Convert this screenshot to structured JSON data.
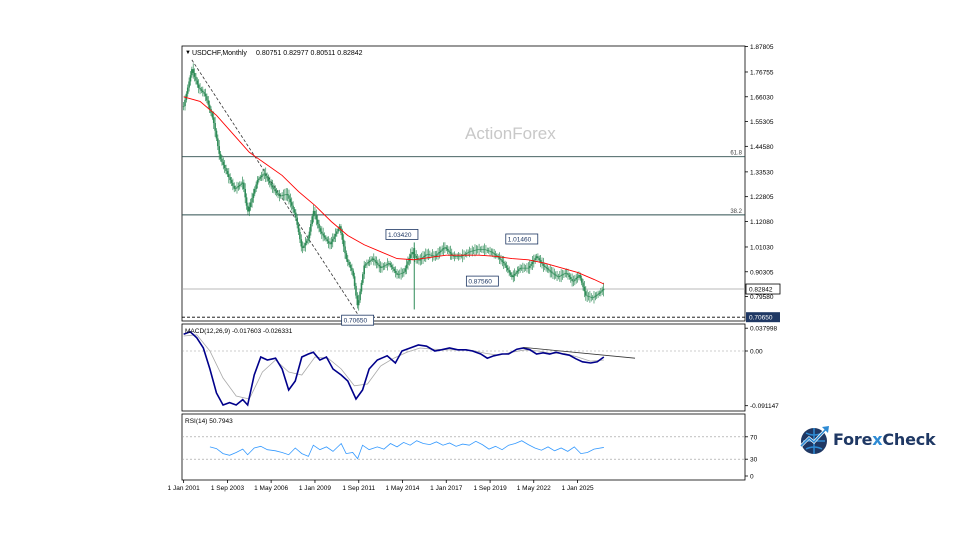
{
  "header": {
    "symbol": "USDCHF,Monthly",
    "ohlc": "0.80751 0.82977 0.80511 0.82842"
  },
  "watermark": "ActionForex",
  "brand": {
    "name_part1": "Fore",
    "name_x": "x",
    "name_part2": "Check"
  },
  "colors": {
    "candle": "#2e8b57",
    "ma": "#ff0000",
    "macd": "#00008b",
    "signal": "#a9a9a9",
    "rsi": "#3399ff",
    "levels": "#2f4f4f"
  },
  "chart_data": [
    {
      "type": "candlestick",
      "name": "main",
      "price_axis_ticks": [
        "1.87805",
        "1.76755",
        "1.66030",
        "1.55305",
        "1.44580",
        "1.33530",
        "1.22805",
        "1.12080",
        "1.01030",
        "0.90305",
        "0.79580"
      ],
      "ylim": [
        0.69,
        1.88
      ],
      "time_ticks": [
        "1 Jan 2001",
        "1 Sep 2003",
        "1 May 2006",
        "1 Jan 2009",
        "1 Sep 2011",
        "1 May 2014",
        "1 Jan 2017",
        "1 Sep 2019",
        "1 May 2022",
        "1 Jan 2025"
      ],
      "time_tick_years": [
        2001.0,
        2003.67,
        2006.33,
        2009.0,
        2011.67,
        2014.33,
        2017.0,
        2019.67,
        2022.33,
        2025.0
      ],
      "xlim": [
        2000.9,
        2035.2
      ],
      "current_price": "0.82842",
      "current_price_value": 0.82842,
      "low_label": "0.70650",
      "low_value": 0.7065,
      "fib_levels": [
        {
          "label": "61.8",
          "value": 1.4009
        },
        {
          "label": "38.2",
          "value": 1.1492
        }
      ],
      "annotations": [
        {
          "text": "0.70650",
          "year": 2011.6,
          "value": 0.7065
        },
        {
          "text": "1.03420",
          "year": 2014.3,
          "value": 1.0342
        },
        {
          "text": "0.87560",
          "year": 2019.2,
          "value": 0.8756
        },
        {
          "text": "1.01460",
          "year": 2021.6,
          "value": 1.0146
        }
      ],
      "spike_2015": {
        "year": 2015.05,
        "low": 0.74,
        "high": 1.03
      },
      "price_path": [
        [
          2001.0,
          1.62
        ],
        [
          2001.5,
          1.78
        ],
        [
          2001.9,
          1.7
        ],
        [
          2002.3,
          1.67
        ],
        [
          2002.8,
          1.56
        ],
        [
          2003.2,
          1.4
        ],
        [
          2003.7,
          1.32
        ],
        [
          2004.1,
          1.26
        ],
        [
          2004.6,
          1.29
        ],
        [
          2004.9,
          1.16
        ],
        [
          2005.5,
          1.3
        ],
        [
          2005.9,
          1.33
        ],
        [
          2006.3,
          1.28
        ],
        [
          2006.8,
          1.23
        ],
        [
          2007.3,
          1.24
        ],
        [
          2007.8,
          1.15
        ],
        [
          2008.2,
          1.0
        ],
        [
          2008.6,
          1.05
        ],
        [
          2008.9,
          1.17
        ],
        [
          2009.3,
          1.08
        ],
        [
          2009.9,
          1.02
        ],
        [
          2010.5,
          1.1
        ],
        [
          2010.9,
          0.96
        ],
        [
          2011.3,
          0.9
        ],
        [
          2011.6,
          0.75
        ],
        [
          2012.0,
          0.93
        ],
        [
          2012.5,
          0.96
        ],
        [
          2013.0,
          0.92
        ],
        [
          2013.5,
          0.94
        ],
        [
          2014.0,
          0.89
        ],
        [
          2014.4,
          0.9
        ],
        [
          2014.9,
          0.99
        ],
        [
          2015.3,
          0.95
        ],
        [
          2015.8,
          0.98
        ],
        [
          2016.3,
          0.97
        ],
        [
          2016.9,
          1.01
        ],
        [
          2017.4,
          0.97
        ],
        [
          2017.9,
          0.97
        ],
        [
          2018.4,
          0.99
        ],
        [
          2018.9,
          1.0
        ],
        [
          2019.3,
          1.0
        ],
        [
          2019.7,
          0.99
        ],
        [
          2020.1,
          0.97
        ],
        [
          2020.5,
          0.94
        ],
        [
          2021.0,
          0.88
        ],
        [
          2021.5,
          0.92
        ],
        [
          2022.0,
          0.92
        ],
        [
          2022.5,
          0.97
        ],
        [
          2022.9,
          0.93
        ],
        [
          2023.4,
          0.9
        ],
        [
          2023.8,
          0.88
        ],
        [
          2024.3,
          0.9
        ],
        [
          2024.7,
          0.86
        ],
        [
          2025.1,
          0.89
        ],
        [
          2025.5,
          0.8
        ],
        [
          2025.9,
          0.79
        ],
        [
          2026.3,
          0.81
        ],
        [
          2026.6,
          0.83
        ]
      ],
      "ma_path": [
        [
          2001.0,
          1.66
        ],
        [
          2002.0,
          1.64
        ],
        [
          2003.0,
          1.58
        ],
        [
          2004.0,
          1.5
        ],
        [
          2005.0,
          1.42
        ],
        [
          2006.0,
          1.37
        ],
        [
          2007.0,
          1.32
        ],
        [
          2008.0,
          1.25
        ],
        [
          2009.0,
          1.19
        ],
        [
          2010.0,
          1.12
        ],
        [
          2011.0,
          1.06
        ],
        [
          2012.0,
          1.02
        ],
        [
          2013.0,
          0.99
        ],
        [
          2014.0,
          0.96
        ],
        [
          2015.0,
          0.955
        ],
        [
          2016.0,
          0.965
        ],
        [
          2017.0,
          0.975
        ],
        [
          2018.0,
          0.975
        ],
        [
          2019.0,
          0.975
        ],
        [
          2020.0,
          0.97
        ],
        [
          2021.0,
          0.96
        ],
        [
          2022.0,
          0.955
        ],
        [
          2023.0,
          0.94
        ],
        [
          2024.0,
          0.92
        ],
        [
          2025.0,
          0.9
        ],
        [
          2026.0,
          0.87
        ],
        [
          2026.6,
          0.85
        ]
      ],
      "trendline_dashed": [
        [
          2001.5,
          1.82
        ],
        [
          2011.6,
          0.72
        ]
      ]
    },
    {
      "type": "line",
      "name": "macd",
      "label": "MACD(12,26,9) -0.017603 -0.026331",
      "axis_ticks": [
        "0.037998",
        "0.00",
        "-0.091147"
      ],
      "ylim": [
        -0.1,
        0.045
      ],
      "zero_line": 0.0,
      "macd_path": [
        [
          2001.0,
          0.028
        ],
        [
          2001.4,
          0.032
        ],
        [
          2001.8,
          0.022
        ],
        [
          2002.2,
          0.005
        ],
        [
          2002.6,
          -0.03
        ],
        [
          2003.0,
          -0.07
        ],
        [
          2003.4,
          -0.09
        ],
        [
          2003.8,
          -0.086
        ],
        [
          2004.2,
          -0.09
        ],
        [
          2004.6,
          -0.081
        ],
        [
          2004.9,
          -0.09
        ],
        [
          2005.3,
          -0.04
        ],
        [
          2005.7,
          -0.01
        ],
        [
          2006.1,
          -0.015
        ],
        [
          2006.6,
          -0.012
        ],
        [
          2007.0,
          -0.03
        ],
        [
          2007.4,
          -0.065
        ],
        [
          2007.8,
          -0.05
        ],
        [
          2008.2,
          -0.01
        ],
        [
          2008.6,
          -0.005
        ],
        [
          2008.9,
          -0.002
        ],
        [
          2009.3,
          -0.015
        ],
        [
          2009.7,
          -0.01
        ],
        [
          2010.1,
          -0.03
        ],
        [
          2010.6,
          -0.04
        ],
        [
          2011.0,
          -0.05
        ],
        [
          2011.5,
          -0.08
        ],
        [
          2011.9,
          -0.065
        ],
        [
          2012.3,
          -0.03
        ],
        [
          2012.8,
          -0.015
        ],
        [
          2013.4,
          -0.008
        ],
        [
          2013.9,
          -0.02
        ],
        [
          2014.3,
          0.0
        ],
        [
          2014.8,
          0.005
        ],
        [
          2015.3,
          0.01
        ],
        [
          2015.8,
          0.008
        ],
        [
          2016.3,
          0.0
        ],
        [
          2016.7,
          0.002
        ],
        [
          2017.2,
          0.005
        ],
        [
          2017.7,
          0.002
        ],
        [
          2018.2,
          0.002
        ],
        [
          2018.6,
          0.0
        ],
        [
          2019.1,
          -0.005
        ],
        [
          2019.5,
          -0.012
        ],
        [
          2019.9,
          -0.008
        ],
        [
          2020.4,
          -0.005
        ],
        [
          2020.8,
          -0.005
        ],
        [
          2021.3,
          0.003
        ],
        [
          2021.7,
          0.005
        ],
        [
          2022.1,
          0.002
        ],
        [
          2022.5,
          -0.005
        ],
        [
          2022.9,
          -0.003
        ],
        [
          2023.3,
          -0.005
        ],
        [
          2023.7,
          -0.002
        ],
        [
          2024.1,
          -0.005
        ],
        [
          2024.5,
          -0.007
        ],
        [
          2024.9,
          -0.013
        ],
        [
          2025.3,
          -0.018
        ],
        [
          2025.8,
          -0.02
        ],
        [
          2026.2,
          -0.018
        ],
        [
          2026.6,
          -0.01
        ]
      ],
      "signal_path": [
        [
          2001.0,
          0.025
        ],
        [
          2001.8,
          0.027
        ],
        [
          2002.6,
          0.0
        ],
        [
          2003.4,
          -0.045
        ],
        [
          2004.2,
          -0.075
        ],
        [
          2005.0,
          -0.08
        ],
        [
          2005.8,
          -0.035
        ],
        [
          2006.6,
          -0.015
        ],
        [
          2007.4,
          -0.035
        ],
        [
          2008.2,
          -0.04
        ],
        [
          2009.0,
          -0.01
        ],
        [
          2009.8,
          -0.012
        ],
        [
          2010.6,
          -0.03
        ],
        [
          2011.4,
          -0.058
        ],
        [
          2012.2,
          -0.055
        ],
        [
          2013.0,
          -0.025
        ],
        [
          2013.8,
          -0.012
        ],
        [
          2014.6,
          -0.002
        ],
        [
          2015.4,
          0.005
        ],
        [
          2016.2,
          0.003
        ],
        [
          2017.0,
          0.002
        ],
        [
          2017.8,
          0.002
        ],
        [
          2018.6,
          0.001
        ],
        [
          2019.4,
          -0.004
        ],
        [
          2020.2,
          -0.007
        ],
        [
          2021.0,
          -0.002
        ],
        [
          2021.8,
          0.002
        ],
        [
          2022.6,
          0.0
        ],
        [
          2023.4,
          -0.004
        ],
        [
          2024.2,
          -0.004
        ],
        [
          2025.0,
          -0.01
        ],
        [
          2025.8,
          -0.017
        ],
        [
          2026.6,
          -0.015
        ]
      ],
      "trendline": [
        [
          2021.7,
          0.006
        ],
        [
          2028.5,
          -0.012
        ]
      ]
    },
    {
      "type": "line",
      "name": "rsi",
      "label": "RSI(14) 50.7943",
      "axis_ticks": [
        "70",
        "30",
        "0"
      ],
      "ylim": [
        0,
        100
      ],
      "levels": [
        70,
        30
      ],
      "rsi_path": [
        [
          2002.6,
          52
        ],
        [
          2003.0,
          49
        ],
        [
          2003.4,
          40
        ],
        [
          2003.8,
          37
        ],
        [
          2004.2,
          42
        ],
        [
          2004.6,
          48
        ],
        [
          2004.9,
          38
        ],
        [
          2005.3,
          50
        ],
        [
          2005.7,
          53
        ],
        [
          2006.1,
          47
        ],
        [
          2006.6,
          45
        ],
        [
          2007.0,
          42
        ],
        [
          2007.4,
          38
        ],
        [
          2007.8,
          50
        ],
        [
          2008.2,
          40
        ],
        [
          2008.6,
          35
        ],
        [
          2008.9,
          55
        ],
        [
          2009.3,
          47
        ],
        [
          2009.7,
          52
        ],
        [
          2010.1,
          44
        ],
        [
          2010.6,
          58
        ],
        [
          2010.9,
          40
        ],
        [
          2011.3,
          42
        ],
        [
          2011.6,
          31
        ],
        [
          2011.9,
          55
        ],
        [
          2012.3,
          47
        ],
        [
          2012.8,
          52
        ],
        [
          2013.2,
          48
        ],
        [
          2013.6,
          58
        ],
        [
          2014.0,
          52
        ],
        [
          2014.4,
          60
        ],
        [
          2014.8,
          55
        ],
        [
          2015.2,
          63
        ],
        [
          2015.6,
          58
        ],
        [
          2016.0,
          56
        ],
        [
          2016.4,
          61
        ],
        [
          2016.8,
          55
        ],
        [
          2017.2,
          59
        ],
        [
          2017.6,
          53
        ],
        [
          2018.0,
          57
        ],
        [
          2018.4,
          55
        ],
        [
          2018.8,
          62
        ],
        [
          2019.2,
          56
        ],
        [
          2019.6,
          48
        ],
        [
          2020.0,
          53
        ],
        [
          2020.4,
          47
        ],
        [
          2020.8,
          55
        ],
        [
          2021.2,
          58
        ],
        [
          2021.6,
          63
        ],
        [
          2022.0,
          56
        ],
        [
          2022.4,
          50
        ],
        [
          2022.8,
          46
        ],
        [
          2023.2,
          52
        ],
        [
          2023.6,
          45
        ],
        [
          2024.0,
          50
        ],
        [
          2024.4,
          44
        ],
        [
          2024.8,
          52
        ],
        [
          2025.2,
          40
        ],
        [
          2025.6,
          42
        ],
        [
          2026.0,
          48
        ],
        [
          2026.6,
          51
        ]
      ]
    }
  ]
}
